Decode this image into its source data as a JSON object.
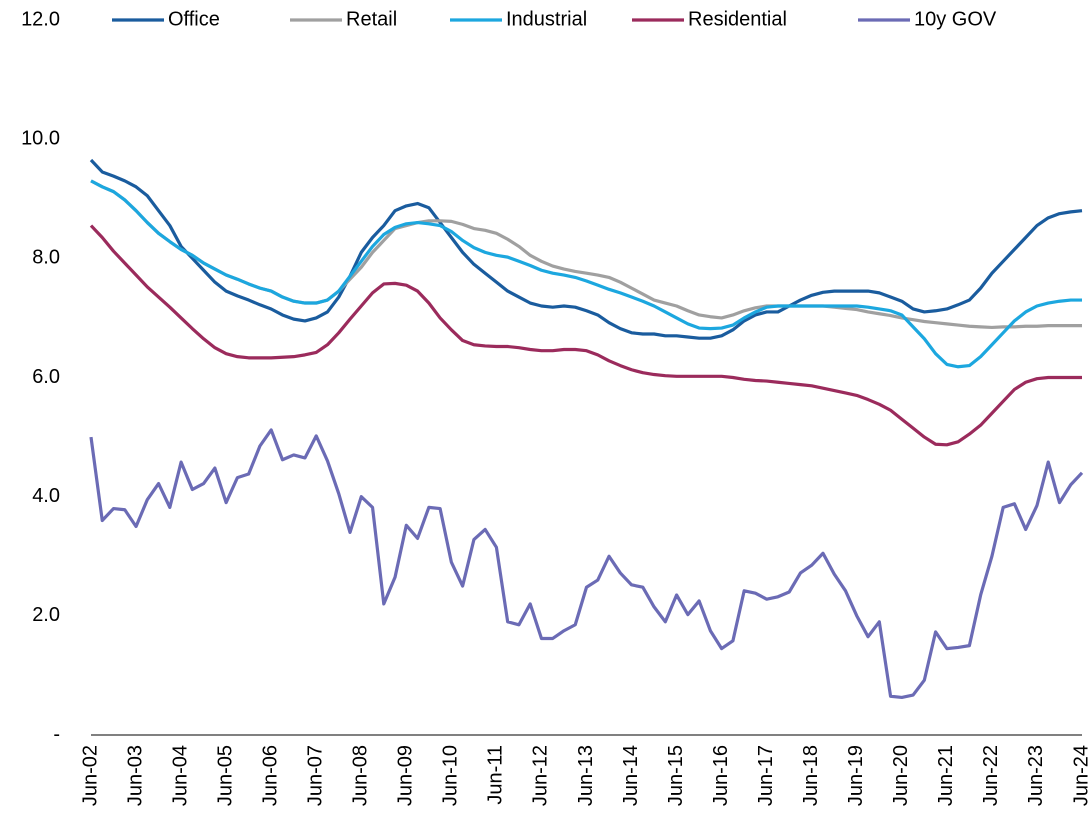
{
  "chart_data": {
    "type": "line",
    "categories": [
      "Jun-02",
      null,
      null,
      null,
      "Jun-03",
      null,
      null,
      null,
      "Jun-04",
      null,
      null,
      null,
      "Jun-05",
      null,
      null,
      null,
      "Jun-06",
      null,
      null,
      null,
      "Jun-07",
      null,
      null,
      null,
      "Jun-08",
      null,
      null,
      null,
      "Jun-09",
      null,
      null,
      null,
      "Jun-10",
      null,
      null,
      null,
      "Jun-11",
      null,
      null,
      null,
      "Jun-12",
      null,
      null,
      null,
      "Jun-13",
      null,
      null,
      null,
      "Jun-14",
      null,
      null,
      null,
      "Jun-15",
      null,
      null,
      null,
      "Jun-16",
      null,
      null,
      null,
      "Jun-17",
      null,
      null,
      null,
      "Jun-18",
      null,
      null,
      null,
      "Jun-19",
      null,
      null,
      null,
      "Jun-20",
      null,
      null,
      null,
      "Jun-21",
      null,
      null,
      null,
      "Jun-22",
      null,
      null,
      null,
      "Jun-23",
      null,
      null,
      null,
      "Jun-24"
    ],
    "series": [
      {
        "name": "Office",
        "color": "#1a5c9e",
        "values": [
          9.65,
          9.45,
          9.38,
          9.3,
          9.2,
          9.05,
          8.8,
          8.55,
          8.2,
          8.0,
          7.8,
          7.6,
          7.45,
          7.37,
          7.3,
          7.22,
          7.15,
          7.05,
          6.98,
          6.95,
          7.0,
          7.1,
          7.35,
          7.7,
          8.1,
          8.35,
          8.55,
          8.8,
          8.88,
          8.92,
          8.85,
          8.6,
          8.35,
          8.1,
          7.9,
          7.75,
          7.6,
          7.45,
          7.35,
          7.25,
          7.2,
          7.18,
          7.2,
          7.18,
          7.12,
          7.05,
          6.92,
          6.82,
          6.75,
          6.73,
          6.73,
          6.7,
          6.7,
          6.68,
          6.66,
          6.66,
          6.7,
          6.8,
          6.95,
          7.05,
          7.1,
          7.1,
          7.2,
          7.3,
          7.38,
          7.43,
          7.45,
          7.45,
          7.45,
          7.45,
          7.42,
          7.35,
          7.28,
          7.15,
          7.1,
          7.12,
          7.15,
          7.22,
          7.3,
          7.5,
          7.75,
          7.95,
          8.15,
          8.35,
          8.55,
          8.68,
          8.75,
          8.78,
          8.8
        ]
      },
      {
        "name": "Retail",
        "color": "#a0a0a0",
        "values": [
          9.3,
          9.2,
          9.12,
          8.98,
          8.8,
          8.6,
          8.42,
          8.28,
          8.15,
          8.05,
          7.92,
          7.82,
          7.72,
          7.65,
          7.57,
          7.5,
          7.45,
          7.35,
          7.28,
          7.25,
          7.25,
          7.3,
          7.45,
          7.65,
          7.85,
          8.1,
          8.3,
          8.5,
          8.55,
          8.6,
          8.63,
          8.63,
          8.62,
          8.57,
          8.5,
          8.47,
          8.42,
          8.32,
          8.2,
          8.05,
          7.95,
          7.87,
          7.82,
          7.78,
          7.75,
          7.72,
          7.68,
          7.6,
          7.5,
          7.4,
          7.3,
          7.25,
          7.2,
          7.12,
          7.05,
          7.02,
          7.0,
          7.05,
          7.12,
          7.17,
          7.2,
          7.2,
          7.2,
          7.2,
          7.2,
          7.2,
          7.18,
          7.16,
          7.14,
          7.1,
          7.07,
          7.04,
          7.0,
          6.97,
          6.94,
          6.92,
          6.9,
          6.88,
          6.86,
          6.85,
          6.84,
          6.85,
          6.85,
          6.86,
          6.86,
          6.87,
          6.87,
          6.87,
          6.87
        ]
      },
      {
        "name": "Industrial",
        "color": "#1ca7df",
        "values": [
          9.3,
          9.2,
          9.12,
          8.98,
          8.8,
          8.6,
          8.42,
          8.28,
          8.15,
          8.05,
          7.92,
          7.82,
          7.72,
          7.65,
          7.57,
          7.5,
          7.45,
          7.35,
          7.28,
          7.25,
          7.25,
          7.3,
          7.45,
          7.7,
          7.95,
          8.2,
          8.4,
          8.52,
          8.58,
          8.6,
          8.58,
          8.55,
          8.45,
          8.3,
          8.18,
          8.1,
          8.05,
          8.02,
          7.95,
          7.88,
          7.8,
          7.75,
          7.72,
          7.68,
          7.62,
          7.55,
          7.48,
          7.42,
          7.35,
          7.28,
          7.2,
          7.1,
          7.0,
          6.9,
          6.83,
          6.82,
          6.83,
          6.88,
          7.0,
          7.1,
          7.18,
          7.2,
          7.2,
          7.2,
          7.2,
          7.2,
          7.2,
          7.2,
          7.2,
          7.18,
          7.15,
          7.12,
          7.05,
          6.85,
          6.65,
          6.4,
          6.22,
          6.18,
          6.2,
          6.35,
          6.55,
          6.75,
          6.95,
          7.1,
          7.2,
          7.25,
          7.28,
          7.3,
          7.3
        ]
      },
      {
        "name": "Residential",
        "color": "#9b2b5c",
        "values": [
          8.55,
          8.35,
          8.12,
          7.92,
          7.72,
          7.52,
          7.35,
          7.18,
          7.0,
          6.82,
          6.65,
          6.5,
          6.4,
          6.35,
          6.33,
          6.33,
          6.33,
          6.34,
          6.35,
          6.38,
          6.42,
          6.55,
          6.75,
          6.98,
          7.2,
          7.42,
          7.57,
          7.58,
          7.55,
          7.45,
          7.25,
          7.0,
          6.8,
          6.62,
          6.55,
          6.53,
          6.52,
          6.52,
          6.5,
          6.47,
          6.45,
          6.45,
          6.47,
          6.47,
          6.45,
          6.38,
          6.28,
          6.2,
          6.13,
          6.08,
          6.05,
          6.03,
          6.02,
          6.02,
          6.02,
          6.02,
          6.02,
          6.0,
          5.97,
          5.95,
          5.94,
          5.92,
          5.9,
          5.88,
          5.86,
          5.82,
          5.78,
          5.74,
          5.7,
          5.63,
          5.55,
          5.45,
          5.3,
          5.15,
          5.0,
          4.88,
          4.87,
          4.92,
          5.05,
          5.2,
          5.4,
          5.6,
          5.8,
          5.92,
          5.98,
          6.0,
          6.0,
          6.0,
          6.0
        ]
      },
      {
        "name": "10y GOV",
        "color": "#6b6bb5",
        "values": [
          5.0,
          3.6,
          3.8,
          3.78,
          3.5,
          3.95,
          4.22,
          3.82,
          4.58,
          4.12,
          4.22,
          4.48,
          3.9,
          4.32,
          4.38,
          4.85,
          5.12,
          4.62,
          4.7,
          4.65,
          5.02,
          4.6,
          4.05,
          3.4,
          4.0,
          3.82,
          2.2,
          2.65,
          3.52,
          3.3,
          3.82,
          3.8,
          2.9,
          2.5,
          3.28,
          3.45,
          3.15,
          1.9,
          1.85,
          2.2,
          1.62,
          1.62,
          1.75,
          1.85,
          2.48,
          2.6,
          3.0,
          2.72,
          2.52,
          2.48,
          2.15,
          1.9,
          2.35,
          2.02,
          2.25,
          1.75,
          1.45,
          1.58,
          2.42,
          2.38,
          2.28,
          2.32,
          2.4,
          2.72,
          2.85,
          3.05,
          2.7,
          2.42,
          2.0,
          1.65,
          1.9,
          0.65,
          0.63,
          0.67,
          0.92,
          1.73,
          1.45,
          1.47,
          1.5,
          2.35,
          3.0,
          3.82,
          3.88,
          3.45,
          3.85,
          4.58,
          3.9,
          4.2,
          4.4
        ]
      }
    ],
    "ylim": [
      0,
      12
    ],
    "yticks": [
      {
        "value": 0,
        "label": "-"
      },
      {
        "value": 2,
        "label": "2.0"
      },
      {
        "value": 4,
        "label": "4.0"
      },
      {
        "value": 6,
        "label": "6.0"
      },
      {
        "value": 8,
        "label": "8.0"
      },
      {
        "value": 10,
        "label": "10.0"
      },
      {
        "value": 12,
        "label": "12.0"
      }
    ],
    "legend": "top"
  }
}
